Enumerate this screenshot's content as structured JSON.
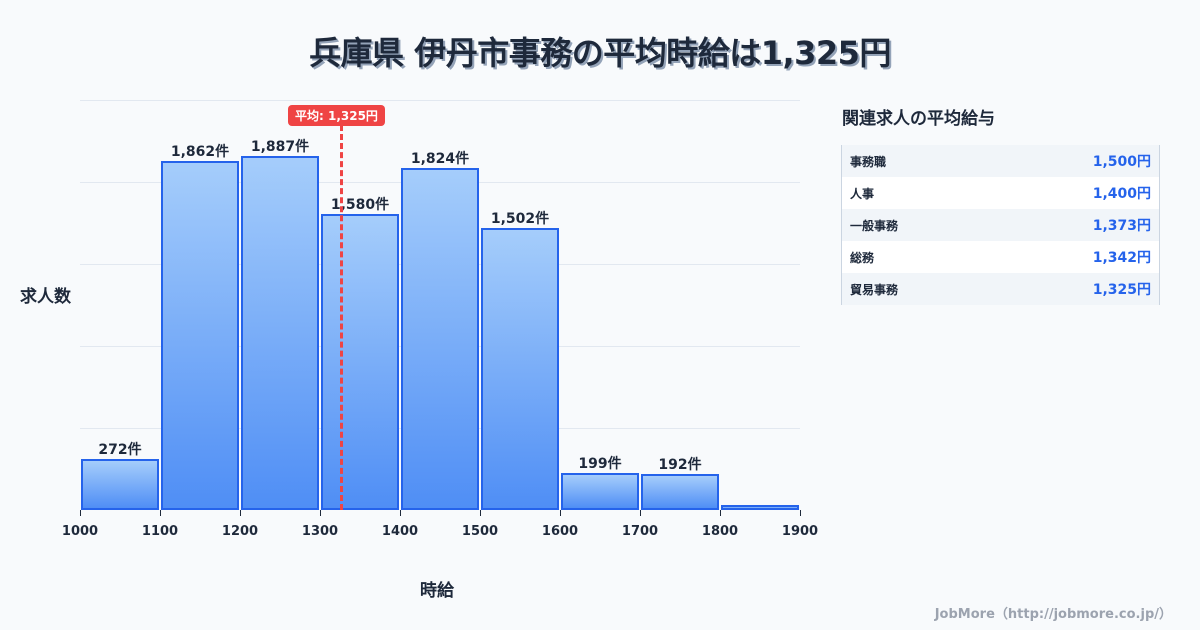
{
  "title": "兵庫県 伊丹市事務の平均時給は1,325円",
  "chart_data": {
    "type": "bar",
    "title": "兵庫県 伊丹市事務の平均時給は1,325円",
    "xlabel": "時給",
    "ylabel": "求人数",
    "categories": [
      "1000-1100",
      "1100-1200",
      "1200-1300",
      "1300-1400",
      "1400-1500",
      "1500-1600",
      "1600-1700",
      "1700-1800",
      "1800-1900"
    ],
    "x_ticks": [
      "1000",
      "1100",
      "1200",
      "1300",
      "1400",
      "1500",
      "1600",
      "1700",
      "1800",
      "1900"
    ],
    "values": [
      272,
      1862,
      1887,
      1580,
      1824,
      1502,
      199,
      192,
      25
    ],
    "labels": [
      "272件",
      "1,862件",
      "1,887件",
      "1,580件",
      "1,824件",
      "1,502件",
      "199件",
      "192件",
      ""
    ],
    "average": {
      "value": 1325,
      "label": "平均: 1,325円"
    },
    "grid": true,
    "ylim": [
      0,
      2187
    ]
  },
  "axis": {
    "ylabel": "求人数",
    "xlabel": "時給"
  },
  "sidebar": {
    "title": "関連求人の平均給与",
    "rows": [
      {
        "name": "事務職",
        "value": "1,500円"
      },
      {
        "name": "人事",
        "value": "1,400円"
      },
      {
        "name": "一般事務",
        "value": "1,373円"
      },
      {
        "name": "総務",
        "value": "1,342円"
      },
      {
        "name": "貿易事務",
        "value": "1,325円"
      }
    ]
  },
  "footer": "JobMore（http://jobmore.co.jp/）"
}
